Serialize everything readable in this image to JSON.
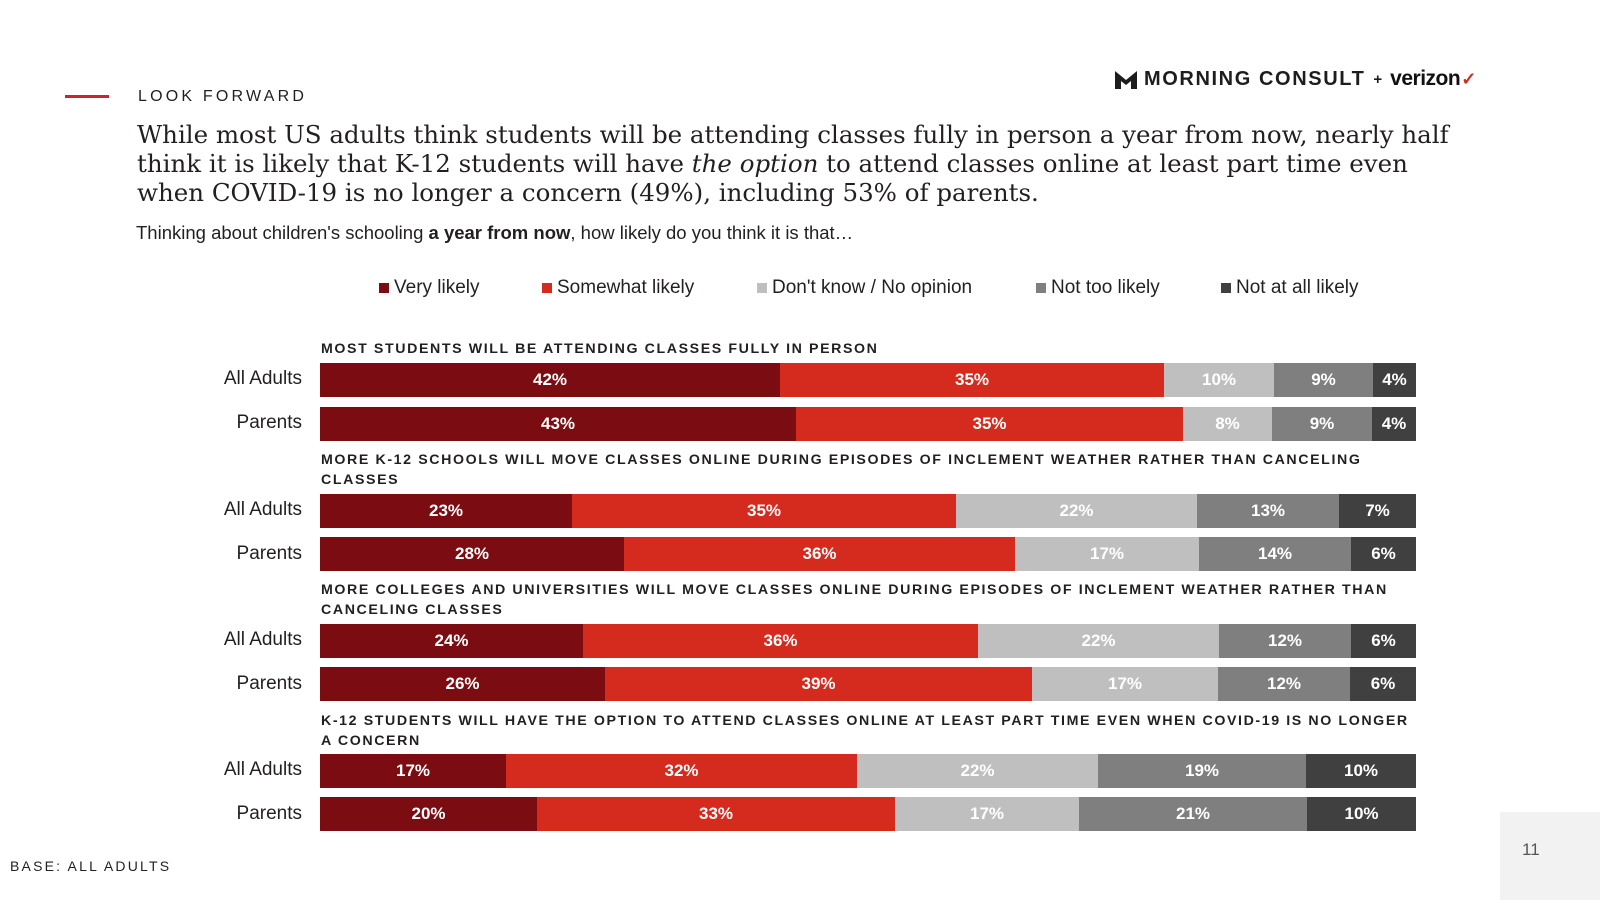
{
  "header": {
    "kicker": "LOOK FORWARD",
    "logo_text": "MORNING CONSULT",
    "logo_plus": "+",
    "partner": "verizon"
  },
  "headline": {
    "part1": "While most US adults think students will be attending classes fully in person a year from now, nearly half think it is likely that K-12 students will have ",
    "emphasis": "the option",
    "part2": " to attend classes online at least part time even when COVID-19 is no longer a concern (49%), including 53% of parents."
  },
  "question": {
    "part1": "Thinking about children's schooling ",
    "bold": "a year from now",
    "part2": ", how likely do you think it is that…"
  },
  "colors": {
    "very_likely": "#7b0c12",
    "somewhat_likely": "#d52b1e",
    "dont_know": "#bfbfbf",
    "not_too_likely": "#7f7f7f",
    "not_at_all_likely": "#404040",
    "accent_rule": "#c8262b"
  },
  "chart_data": {
    "type": "bar",
    "orientation": "horizontal",
    "stacked": true,
    "value_unit": "%",
    "legend": [
      "Very likely",
      "Somewhat likely",
      "Don't know / No opinion",
      "Not too likely",
      "Not at all likely"
    ],
    "legend_placement": "top",
    "groups": [
      {
        "title": "MOST STUDENTS WILL BE ATTENDING CLASSES FULLY IN PERSON",
        "rows": [
          {
            "label": "All Adults",
            "values": [
              42,
              35,
              10,
              9,
              4
            ]
          },
          {
            "label": "Parents",
            "values": [
              43,
              35,
              8,
              9,
              4
            ]
          }
        ]
      },
      {
        "title": "MORE K-12 SCHOOLS WILL MOVE CLASSES ONLINE DURING EPISODES OF INCLEMENT WEATHER RATHER THAN CANCELING CLASSES",
        "rows": [
          {
            "label": "All Adults",
            "values": [
              23,
              35,
              22,
              13,
              7
            ]
          },
          {
            "label": "Parents",
            "values": [
              28,
              36,
              17,
              14,
              6
            ]
          }
        ]
      },
      {
        "title": "MORE COLLEGES AND UNIVERSITIES WILL MOVE CLASSES ONLINE DURING EPISODES OF INCLEMENT WEATHER RATHER THAN CANCELING CLASSES",
        "rows": [
          {
            "label": "All Adults",
            "values": [
              24,
              36,
              22,
              12,
              6
            ]
          },
          {
            "label": "Parents",
            "values": [
              26,
              39,
              17,
              12,
              6
            ]
          }
        ]
      },
      {
        "title": "K-12 STUDENTS WILL HAVE THE OPTION TO ATTEND CLASSES ONLINE AT LEAST PART TIME EVEN WHEN COVID-19 IS NO LONGER A CONCERN",
        "rows": [
          {
            "label": "All Adults",
            "values": [
              17,
              32,
              22,
              19,
              10
            ]
          },
          {
            "label": "Parents",
            "values": [
              20,
              33,
              17,
              21,
              10
            ]
          }
        ]
      }
    ]
  },
  "footer": {
    "base": "BASE: ALL ADULTS",
    "page_number": "11"
  }
}
